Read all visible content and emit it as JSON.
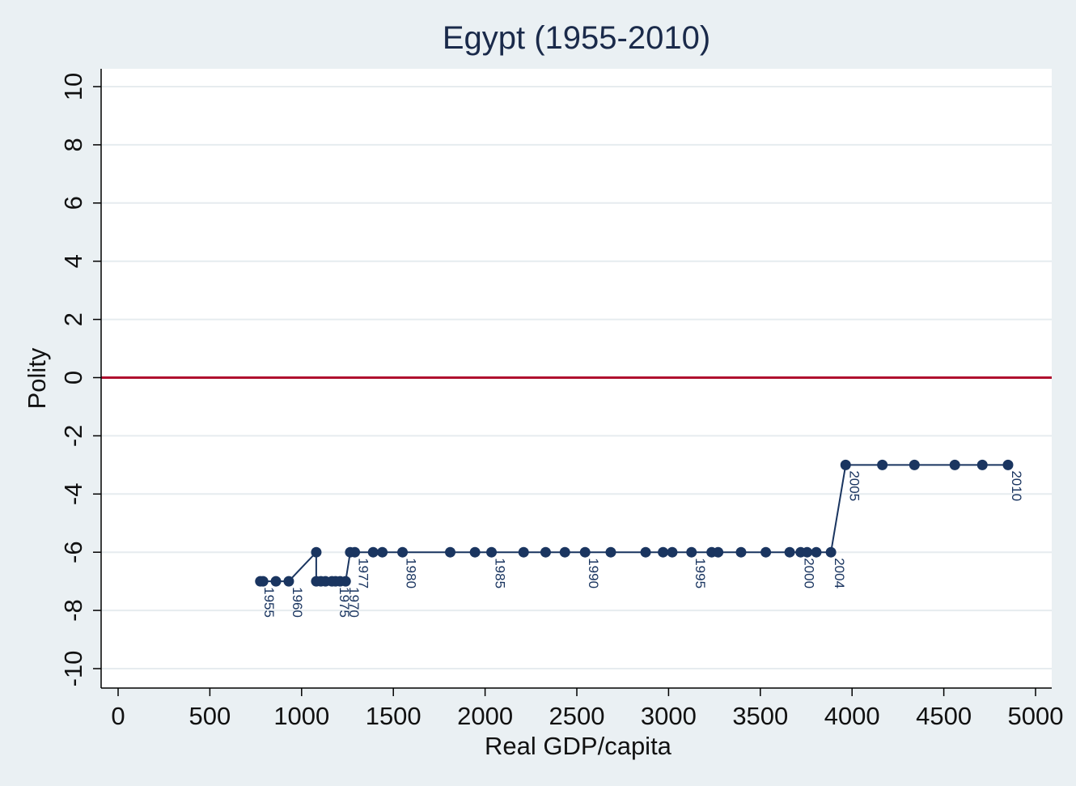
{
  "chart_data": {
    "type": "scatter",
    "title": "Egypt (1955-2010)",
    "xlabel": "Real GDP/capita",
    "ylabel": "Polity",
    "xlim": [
      0,
      5000
    ],
    "ylim": [
      -10,
      10
    ],
    "xticks": [
      "0",
      "500",
      "1000",
      "1500",
      "2000",
      "2500",
      "3000",
      "3500",
      "4000",
      "4500",
      "5000"
    ],
    "yticks": [
      "-10",
      "-8",
      "-6",
      "-4",
      "-2",
      "0",
      "2",
      "4",
      "6",
      "8",
      "10"
    ],
    "reference_line_y": 0,
    "grid": "horizontal",
    "colors": {
      "series": "#1a3560",
      "reference_line": "#b0102f",
      "plot_background": "#ffffff",
      "grid": "#e6ecef"
    },
    "series": [
      {
        "points": [
          {
            "x": 775,
            "y": -7,
            "label": "1955"
          },
          {
            "x": 790,
            "y": -7
          },
          {
            "x": 860,
            "y": -7
          },
          {
            "x": 930,
            "y": -7,
            "label": "1960"
          },
          {
            "x": 1080,
            "y": -6
          },
          {
            "x": 1080,
            "y": -7
          },
          {
            "x": 1105,
            "y": -7
          },
          {
            "x": 1130,
            "y": -7
          },
          {
            "x": 1165,
            "y": -7
          },
          {
            "x": 1185,
            "y": -7,
            "label": "1975"
          },
          {
            "x": 1210,
            "y": -7
          },
          {
            "x": 1240,
            "y": -7,
            "label": "1970"
          },
          {
            "x": 1265,
            "y": -6
          },
          {
            "x": 1290,
            "y": -6,
            "label": "1977"
          },
          {
            "x": 1390,
            "y": -6
          },
          {
            "x": 1440,
            "y": -6
          },
          {
            "x": 1550,
            "y": -6,
            "label": "1980"
          },
          {
            "x": 1810,
            "y": -6
          },
          {
            "x": 1945,
            "y": -6
          },
          {
            "x": 2035,
            "y": -6,
            "label": "1985"
          },
          {
            "x": 2210,
            "y": -6
          },
          {
            "x": 2330,
            "y": -6
          },
          {
            "x": 2435,
            "y": -6
          },
          {
            "x": 2545,
            "y": -6,
            "label": "1990"
          },
          {
            "x": 2685,
            "y": -6
          },
          {
            "x": 2875,
            "y": -6
          },
          {
            "x": 2970,
            "y": -6
          },
          {
            "x": 3020,
            "y": -6
          },
          {
            "x": 3125,
            "y": -6,
            "label": "1995"
          },
          {
            "x": 3235,
            "y": -6
          },
          {
            "x": 3270,
            "y": -6
          },
          {
            "x": 3395,
            "y": -6
          },
          {
            "x": 3530,
            "y": -6
          },
          {
            "x": 3660,
            "y": -6
          },
          {
            "x": 3720,
            "y": -6,
            "label": "2000"
          },
          {
            "x": 3755,
            "y": -6
          },
          {
            "x": 3805,
            "y": -6
          },
          {
            "x": 3885,
            "y": -6,
            "label": "2004"
          },
          {
            "x": 3965,
            "y": -3,
            "label": "2005"
          },
          {
            "x": 4165,
            "y": -3
          },
          {
            "x": 4340,
            "y": -3
          },
          {
            "x": 4560,
            "y": -3
          },
          {
            "x": 4710,
            "y": -3
          },
          {
            "x": 4850,
            "y": -3,
            "label": "2010"
          }
        ]
      }
    ]
  }
}
